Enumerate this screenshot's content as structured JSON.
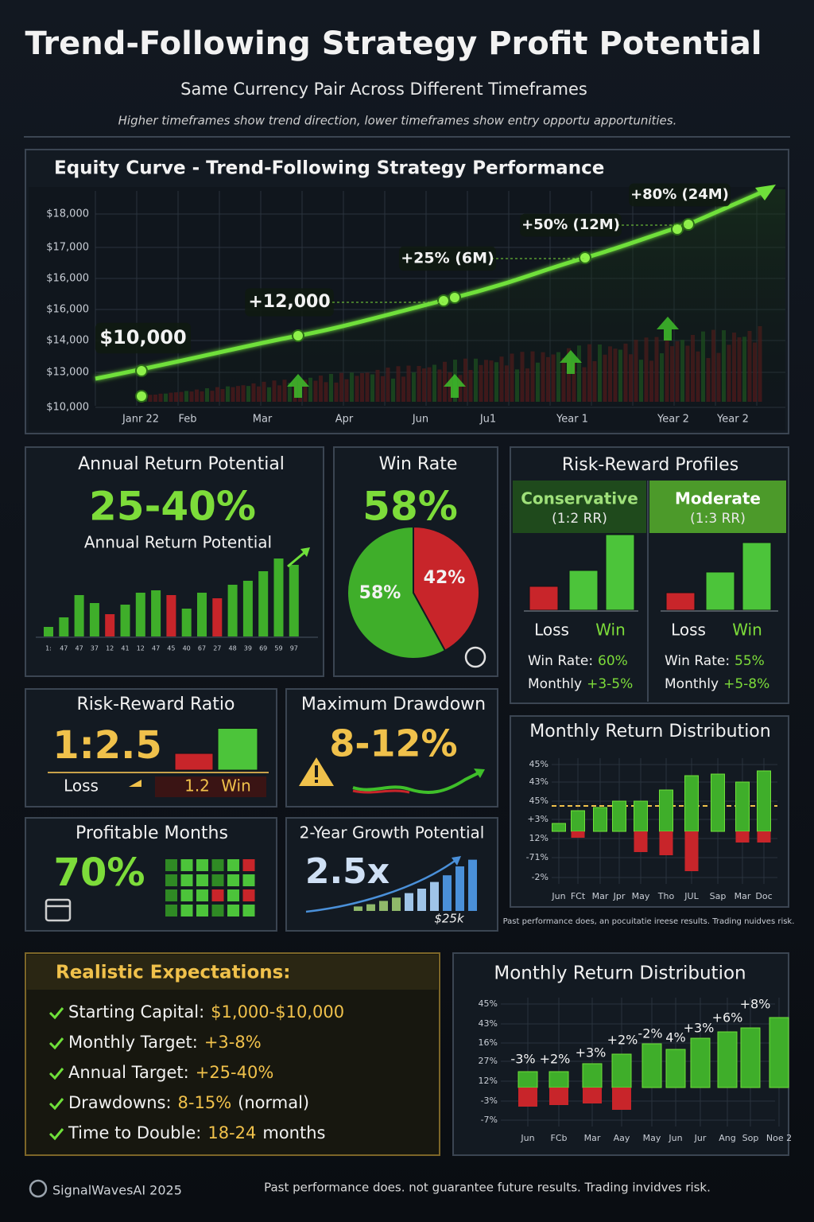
{
  "header": {
    "title": "Trend-Following Strategy Profit Potential",
    "subtitle": "Same Currency Pair Across Different Timeframes",
    "note": "Higher timeframes show trend direction, lower timeframes show entry opportu apportunities."
  },
  "equity_curve": {
    "title": "Equity Curve - Trend-Following Strategy Performance",
    "y_labels": [
      "$18,000",
      "$17,000",
      "$16,000",
      "$16,000",
      "$14,000",
      "$13,000",
      "$10,000"
    ],
    "x_labels": [
      "Janr 22",
      "Feb",
      "Mar",
      "Apr",
      "Jun",
      "Ju1",
      "Year 1",
      "Year 2",
      "Year 2"
    ],
    "annotations": [
      "$10,000",
      "+12,000",
      "+25% (6M)",
      "+50% (12M)",
      "+80% (24M)"
    ]
  },
  "annual_return": {
    "title": "Annual Return Potential",
    "value": "25-40%",
    "caption": "Annual Return Potential",
    "bars": [
      12,
      24,
      52,
      42,
      28,
      40,
      55,
      58,
      52,
      35,
      55,
      48,
      65,
      70,
      82,
      98,
      90
    ],
    "bar_colors": [
      "#3fae2a",
      "#3fae2a",
      "#3fae2a",
      "#3fae2a",
      "#c8252a",
      "#3fae2a",
      "#3fae2a",
      "#3fae2a",
      "#c8252a",
      "#3fae2a",
      "#3fae2a",
      "#c8252a",
      "#3fae2a",
      "#3fae2a",
      "#3fae2a",
      "#3fae2a",
      "#3fae2a"
    ],
    "bar_labels": [
      "1:",
      "47",
      "47",
      "37",
      "12",
      "41",
      "12",
      "47",
      "45",
      "40",
      "67",
      "27",
      "48",
      "39",
      "69",
      "59",
      "97"
    ]
  },
  "win_rate": {
    "title": "Win Rate",
    "value": "58%",
    "slices": [
      58,
      42
    ],
    "slice_labels": [
      "58%",
      "42%"
    ],
    "slice_colors": [
      "#3fae2a",
      "#c8252a"
    ]
  },
  "risk_reward_profiles": {
    "title": "Risk-Reward Profiles",
    "profiles": [
      {
        "name": "Conservative",
        "rr": "(1:2 RR)",
        "bars": [
          30,
          50,
          95
        ],
        "loss_label": "Loss",
        "win_label": "Win",
        "win_rate_label": "Win Rate:",
        "win_rate": "60%",
        "monthly_label": "Monthly",
        "monthly": "+3-5%"
      },
      {
        "name": "Moderate",
        "rr": "(1:3 RR)",
        "bars": [
          22,
          48,
          85
        ],
        "loss_label": "Loss",
        "win_label": "Win",
        "win_rate_label": "Win Rate:",
        "win_rate": "55%",
        "monthly_label": "Monthly",
        "monthly": "+5-8%"
      }
    ]
  },
  "risk_reward_ratio": {
    "title": "Risk-Reward Ratio",
    "value": "1:2.5",
    "bars": [
      1,
      2.5
    ],
    "loss_label": "Loss",
    "ratio_label": "1.2",
    "win_label": "Win"
  },
  "max_drawdown": {
    "title": "Maximum Drawdown",
    "value": "8-12%"
  },
  "monthly_distribution_1": {
    "title": "Monthly Return Distribution",
    "y_labels": [
      "45%",
      "43%",
      "45%",
      "+3%",
      "12%",
      "-71%",
      "-2%"
    ],
    "x_labels": [
      "Jun",
      "FCt",
      "Mar",
      "Jpr",
      "May",
      "Tho",
      "JUL",
      "Sap",
      "Mar",
      "Doc"
    ],
    "gains": [
      10,
      26,
      30,
      38,
      38,
      52,
      70,
      72,
      62,
      76
    ],
    "losses": [
      0,
      8,
      0,
      0,
      26,
      30,
      50,
      0,
      14,
      14
    ],
    "disclaimer": "Past performance does, an pocuitatie ireese results. Trading nuidves risk."
  },
  "profitable_months": {
    "title": "Profitable Months",
    "value": "70%"
  },
  "growth": {
    "title": "2-Year Growth Potential",
    "value": "2.5x",
    "amount": "$25k",
    "bars": [
      4,
      6,
      9,
      12,
      16,
      20,
      26,
      32,
      40,
      46
    ]
  },
  "expectations": {
    "title": "Realistic Expectations:",
    "items": [
      {
        "label": "Starting Capital:",
        "value": "$1,000-$10,000"
      },
      {
        "label": "Monthly Target:",
        "value": "+3-8%"
      },
      {
        "label": "Annual Target:",
        "value": "+25-40%"
      },
      {
        "label": "Drawdowns:",
        "value": "8-15%",
        "suffix": "(normal)"
      },
      {
        "label": "Time to Double:",
        "value": "18-24",
        "suffix": "months"
      }
    ]
  },
  "monthly_distribution_2": {
    "title": "Monthly Return Distribution",
    "y_labels": [
      "45%",
      "43%",
      "16%",
      "27%",
      "12%",
      "-3%",
      "-7%"
    ],
    "x_labels": [
      "Jun",
      "FCb",
      "Mar",
      "Aay",
      "May",
      "Jun",
      "Jur",
      "Ang",
      "Sop",
      "Noe 2"
    ],
    "gains": [
      20,
      20,
      30,
      42,
      55,
      48,
      62,
      70,
      75,
      88
    ],
    "losses": [
      24,
      22,
      20,
      28,
      0,
      0,
      0,
      0,
      0,
      0
    ],
    "annotations": [
      "-3%",
      "+2%",
      "+3%",
      "+2%",
      "-2%",
      "4%",
      "+3%",
      "+6%",
      "+8%"
    ]
  },
  "footer": {
    "brand": "SignalWavesAI 2025",
    "disclaimer": "Past performance does. not guarantee future results. Trading invidves risk."
  }
}
